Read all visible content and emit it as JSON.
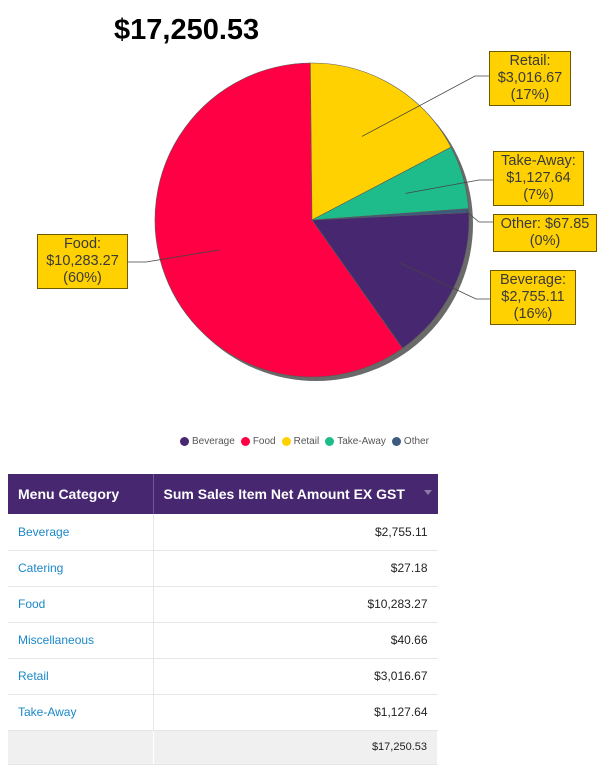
{
  "total_display": "$17,250.53",
  "chart_data": {
    "type": "pie",
    "slices": [
      {
        "name": "Beverage",
        "value": 2755.11,
        "color": "#472770",
        "label": "Beverage:\n$2,755.11\n(16%)"
      },
      {
        "name": "Food",
        "value": 10283.27,
        "color": "#ff0045",
        "label": "Food:\n$10,283.27\n(60%)"
      },
      {
        "name": "Retail",
        "value": 3016.67,
        "color": "#ffd100",
        "label": "Retail:\n$3,016.67\n(17%)"
      },
      {
        "name": "Take-Away",
        "value": 1127.64,
        "color": "#1ebc8a",
        "label": "Take-Away:\n$1,127.64\n(7%)"
      },
      {
        "name": "Other",
        "value": 67.85,
        "color": "#3d5a80",
        "label": "Other: $67.85\n(0%)"
      }
    ],
    "legend_position": "bottom"
  },
  "legend": [
    "Beverage",
    "Food",
    "Retail",
    "Take-Away",
    "Other"
  ],
  "table": {
    "headers": [
      "Menu Category",
      "Sum Sales Item Net Amount EX GST"
    ],
    "rows": [
      {
        "category": "Beverage",
        "amount": "$2,755.11"
      },
      {
        "category": "Catering",
        "amount": "$27.18"
      },
      {
        "category": "Food",
        "amount": "$10,283.27"
      },
      {
        "category": "Miscellaneous",
        "amount": "$40.66"
      },
      {
        "category": "Retail",
        "amount": "$3,016.67"
      },
      {
        "category": "Take-Away",
        "amount": "$1,127.64"
      }
    ],
    "total": {
      "category": "",
      "amount": "$17,250.53"
    }
  }
}
